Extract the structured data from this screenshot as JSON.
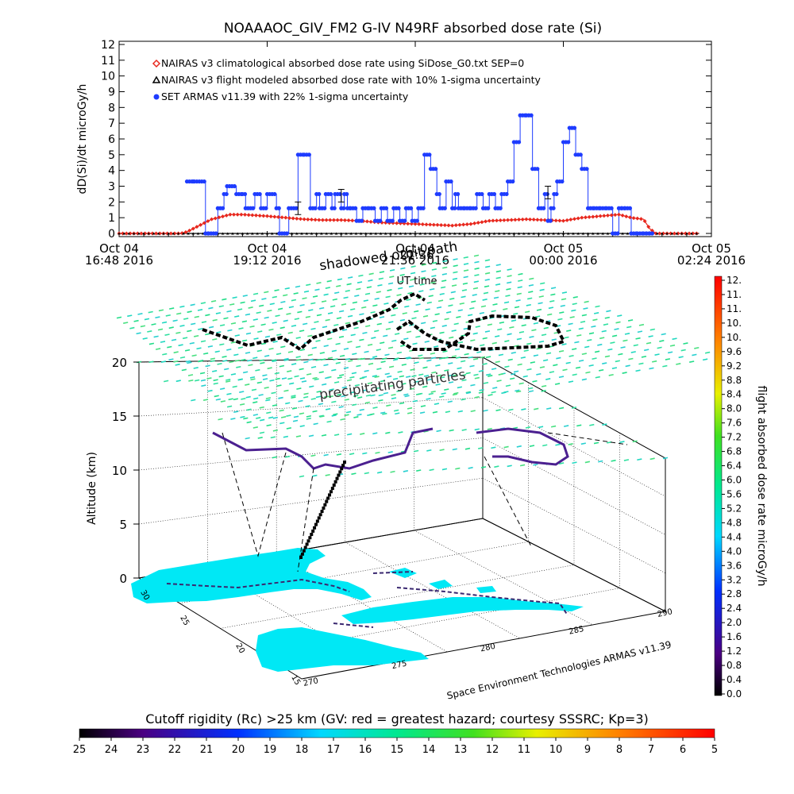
{
  "title": "NOAAAOC_GIV_FM2 G-IV    N49RF   absorbed dose rate (Si)",
  "chart_data": [
    {
      "type": "line",
      "ylabel": "dD(Si)/dt microGy/h",
      "xlabel": "UT time",
      "ylim": [
        0,
        12
      ],
      "yticks": [
        0,
        1,
        2,
        3,
        4,
        5,
        6,
        7,
        8,
        9,
        10,
        11,
        12
      ],
      "xrange_hours": [
        0,
        9.6
      ],
      "xticks": [
        {
          "hour": 0,
          "line1": "Oct 04",
          "line2": "16:48 2016"
        },
        {
          "hour": 2.4,
          "line1": "Oct 04",
          "line2": "19:12 2016"
        },
        {
          "hour": 4.8,
          "line1": "Oct 04",
          "line2": "21:36 2016"
        },
        {
          "hour": 7.2,
          "line1": "Oct 05",
          "line2": "00:00 2016"
        },
        {
          "hour": 9.6,
          "line1": "Oct 05",
          "line2": "02:24 2016"
        }
      ],
      "legend": [
        {
          "marker": "diamond",
          "color": "#e8281e",
          "text": "NAIRAS v3 climatological absorbed dose rate using SiDose_G0.txt SEP=0"
        },
        {
          "marker": "triangle",
          "color": "#000000",
          "text": "NAIRAS v3 flight modeled absorbed dose rate with 10% 1-sigma uncertainty"
        },
        {
          "marker": "circle",
          "color": "#1e3cff",
          "text": "SET ARMAS v11.39 with 22% 1-sigma uncertainty"
        }
      ],
      "series": [
        {
          "name": "NAIRAS v3 climatological absorbed dose rate using SiDose_G0.txt SEP=0",
          "color": "#e8281e",
          "x": [
            0,
            0.5,
            1.0,
            1.1,
            1.3,
            1.5,
            1.7,
            1.8,
            1.9,
            2.0,
            2.2,
            2.4,
            2.7,
            3.0,
            3.3,
            3.6,
            3.9,
            4.2,
            4.5,
            4.8,
            5.1,
            5.4,
            5.7,
            6.0,
            6.3,
            6.6,
            6.9,
            7.2,
            7.5,
            7.8,
            8.1,
            8.3,
            8.5,
            8.6,
            8.7,
            9.0,
            9.4
          ],
          "y": [
            0,
            0,
            0,
            0.1,
            0.5,
            0.9,
            1.1,
            1.2,
            1.2,
            1.2,
            1.15,
            1.1,
            1.0,
            0.9,
            0.85,
            0.85,
            0.8,
            0.7,
            0.65,
            0.6,
            0.55,
            0.5,
            0.6,
            0.8,
            0.85,
            0.9,
            0.85,
            0.8,
            1.0,
            1.1,
            1.2,
            1.0,
            0.9,
            0.3,
            0,
            0,
            0
          ]
        },
        {
          "name": "NAIRAS v3 flight modeled absorbed dose rate with 10% 1-sigma uncertainty",
          "color": "#000000",
          "x": [
            0,
            1.0,
            2.0,
            3.0,
            4.0,
            5.0,
            6.0,
            7.0,
            8.0,
            9.0,
            9.4
          ],
          "y": [
            0,
            0,
            0,
            0,
            0,
            0,
            0,
            0,
            0,
            0,
            0
          ]
        },
        {
          "name": "SET ARMAS v11.39 with 22% 1-sigma uncertainty",
          "color": "#1e3cff",
          "x": [
            1.1,
            1.2,
            1.22,
            1.4,
            1.45,
            1.6,
            1.7,
            1.75,
            1.9,
            2.0,
            2.05,
            2.2,
            2.3,
            2.4,
            2.55,
            2.6,
            2.75,
            2.9,
            3.0,
            3.1,
            3.2,
            3.25,
            3.35,
            3.45,
            3.5,
            3.6,
            3.65,
            3.7,
            3.75,
            3.85,
            3.95,
            4.05,
            4.15,
            4.25,
            4.35,
            4.45,
            4.55,
            4.65,
            4.75,
            4.85,
            4.95,
            5.05,
            5.15,
            5.2,
            5.3,
            5.4,
            5.45,
            5.5,
            5.6,
            5.7,
            5.8,
            5.9,
            6.0,
            6.1,
            6.2,
            6.3,
            6.4,
            6.5,
            6.6,
            6.7,
            6.8,
            6.9,
            6.95,
            7.0,
            7.05,
            7.1,
            7.2,
            7.3,
            7.4,
            7.5,
            7.6,
            7.7,
            7.8,
            7.9,
            8.0,
            8.1,
            8.15,
            8.2,
            8.3,
            8.4,
            8.5,
            8.55,
            8.6,
            8.65
          ],
          "y": [
            3.3,
            3.3,
            3.3,
            0,
            0,
            1.6,
            2.5,
            3.0,
            2.5,
            2.5,
            1.6,
            2.5,
            1.6,
            2.5,
            1.6,
            0,
            1.6,
            5.0,
            5.0,
            1.6,
            2.5,
            1.6,
            2.5,
            1.6,
            2.5,
            1.6,
            2.5,
            1.6,
            1.6,
            0.8,
            1.6,
            1.6,
            0.8,
            1.6,
            0.8,
            1.6,
            0.8,
            1.6,
            0.8,
            1.6,
            5.0,
            4.1,
            2.5,
            1.6,
            3.3,
            1.6,
            2.5,
            1.6,
            1.6,
            1.6,
            2.5,
            1.6,
            2.5,
            1.6,
            2.5,
            3.3,
            5.8,
            7.5,
            7.5,
            4.1,
            1.6,
            2.5,
            0.8,
            1.6,
            2.5,
            3.3,
            5.8,
            6.7,
            5.0,
            4.1,
            1.6,
            1.6,
            1.6,
            1.6,
            0,
            1.6,
            1.6,
            1.6,
            0,
            0,
            0,
            0,
            0,
            0
          ]
        }
      ]
    },
    {
      "type": "scatter",
      "subtype": "3d-flight-track",
      "zlabel": "Altitude (km)",
      "zlim": [
        0,
        20
      ],
      "zticks": [
        0,
        5,
        10,
        15,
        20
      ],
      "lat_ticks": [
        "15",
        "20",
        "25",
        "30"
      ],
      "lon_ticks": [
        "270",
        "275",
        "280",
        "285",
        "290"
      ],
      "annotations": [
        "shadowed orbit path",
        "21:36",
        "precipitating particles"
      ],
      "credit": "Space Environment Technologies ARMAS v11.39",
      "colorbar_right": {
        "label": "flight absorbed dose rate microGy/h",
        "ticks": [
          "0.0",
          "0.4",
          "0.8",
          "1.2",
          "1.6",
          "2.0",
          "2.4",
          "2.8",
          "3.2",
          "3.6",
          "4.0",
          "4.4",
          "4.8",
          "5.2",
          "5.6",
          "6.0",
          "6.4",
          "6.8",
          "7.2",
          "7.6",
          "8.0",
          "8.4",
          "8.8",
          "9.2",
          "9.6",
          "10.",
          "10.",
          "11.",
          "11.",
          "12."
        ]
      },
      "colorbar_bottom": {
        "label": "Cutoff rigidity (Rc) >25 km (GV: red = greatest hazard; courtesy SSSRC; Kp=3)",
        "ticks": [
          "25",
          "24",
          "23",
          "22",
          "21",
          "20",
          "19",
          "18",
          "17",
          "16",
          "15",
          "14",
          "13",
          "12",
          "11",
          "10",
          "9",
          "8",
          "7",
          "6",
          "5"
        ]
      }
    }
  ],
  "colors": {
    "land_fill": "#00e8f5",
    "orbit_fill": "#22dd88",
    "grid": "#000000"
  }
}
